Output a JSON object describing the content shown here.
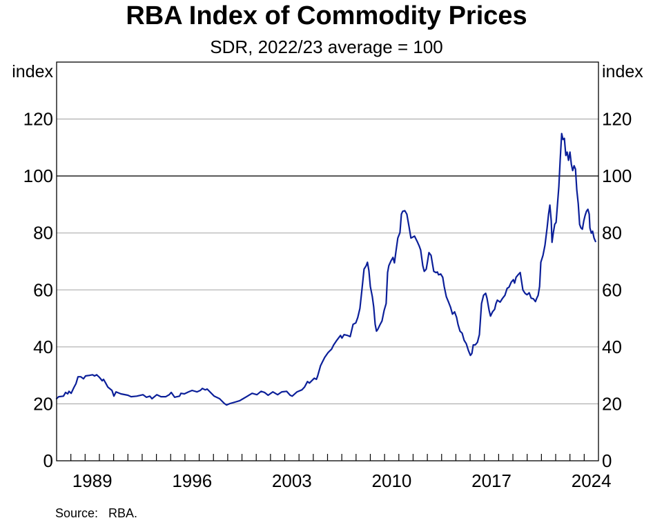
{
  "chart_data": {
    "type": "line",
    "title": "RBA Index of Commodity Prices",
    "subtitle": "SDR, 2022/23 average = 100",
    "ylabel_left": "index",
    "ylabel_right": "index",
    "xlabel": "",
    "xlim": [
      1987,
      2025
    ],
    "ylim": [
      0,
      140
    ],
    "yticks": [
      0,
      20,
      40,
      60,
      80,
      100,
      120
    ],
    "ytick_labels": [
      "0",
      "20",
      "40",
      "60",
      "80",
      "100",
      "120"
    ],
    "xtick_labels": [
      "1989",
      "1996",
      "2003",
      "2010",
      "2017",
      "2024"
    ],
    "xtick_label_years": [
      1989.5,
      1996.5,
      2003.5,
      2010.5,
      2017.5,
      2024.5
    ],
    "reference_line": 100,
    "grid": true,
    "legend": "none",
    "source": "Source:   RBA.",
    "line_color": "#0b1f99",
    "series": [
      {
        "name": "RBA Index of Commodity Prices",
        "x": [
          1987.0,
          1987.15,
          1987.48,
          1987.63,
          1987.78,
          1987.87,
          1988.02,
          1988.21,
          1988.36,
          1988.5,
          1988.7,
          1988.89,
          1989.03,
          1989.33,
          1989.52,
          1989.66,
          1989.81,
          1990.0,
          1990.2,
          1990.29,
          1990.44,
          1990.59,
          1990.88,
          1991.02,
          1991.17,
          1991.51,
          1992.0,
          1992.23,
          1992.62,
          1993.06,
          1993.3,
          1993.54,
          1993.69,
          1994.03,
          1994.32,
          1994.66,
          1994.9,
          1995.04,
          1995.28,
          1995.62,
          1995.72,
          1995.96,
          1996.25,
          1996.5,
          1996.84,
          1997.08,
          1997.22,
          1997.42,
          1997.56,
          1998.05,
          1998.43,
          1998.77,
          1998.92,
          1999.16,
          1999.5,
          1999.84,
          2000.08,
          2000.32,
          2000.71,
          2001.05,
          2001.34,
          2001.58,
          2001.83,
          2002.16,
          2002.5,
          2002.79,
          2003.13,
          2003.38,
          2003.52,
          2003.86,
          2004.2,
          2004.39,
          2004.59,
          2004.73,
          2004.93,
          2005.07,
          2005.22,
          2005.31,
          2005.51,
          2005.65,
          2005.8,
          2006.04,
          2006.28,
          2006.43,
          2006.62,
          2006.77,
          2006.91,
          2007.01,
          2007.16,
          2007.4,
          2007.59,
          2007.79,
          2007.98,
          2008.12,
          2008.27,
          2008.41,
          2008.56,
          2008.71,
          2008.8,
          2008.9,
          2009.0,
          2009.14,
          2009.24,
          2009.34,
          2009.43,
          2009.53,
          2009.67,
          2009.82,
          2009.97,
          2010.11,
          2010.21,
          2010.3,
          2010.45,
          2010.59,
          2010.69,
          2010.79,
          2010.93,
          2011.08,
          2011.18,
          2011.27,
          2011.42,
          2011.56,
          2011.71,
          2011.85,
          2012.0,
          2012.1,
          2012.29,
          2012.44,
          2012.53,
          2012.68,
          2012.78,
          2012.92,
          2013.02,
          2013.11,
          2013.26,
          2013.36,
          2013.45,
          2013.6,
          2013.7,
          2013.79,
          2013.94,
          2014.08,
          2014.18,
          2014.33,
          2014.47,
          2014.62,
          2014.76,
          2014.91,
          2015.05,
          2015.15,
          2015.29,
          2015.44,
          2015.58,
          2015.73,
          2015.88,
          2016.02,
          2016.12,
          2016.22,
          2016.36,
          2016.51,
          2016.65,
          2016.8,
          2016.94,
          2017.09,
          2017.18,
          2017.33,
          2017.43,
          2017.57,
          2017.72,
          2017.81,
          2017.91,
          2018.1,
          2018.25,
          2018.44,
          2018.59,
          2018.73,
          2018.88,
          2019.03,
          2019.12,
          2019.22,
          2019.36,
          2019.51,
          2019.7,
          2019.85,
          2019.99,
          2020.14,
          2020.28,
          2020.43,
          2020.58,
          2020.67,
          2020.77,
          2020.87,
          2020.96,
          2021.11,
          2021.25,
          2021.4,
          2021.5,
          2021.59,
          2021.69,
          2021.74,
          2021.83,
          2021.93,
          2022.03,
          2022.13,
          2022.22,
          2022.32,
          2022.42,
          2022.51,
          2022.61,
          2022.71,
          2022.8,
          2022.9,
          2023.0,
          2023.1,
          2023.19,
          2023.29,
          2023.39,
          2023.48,
          2023.58,
          2023.68,
          2023.77,
          2023.87,
          2023.97,
          2024.06,
          2024.16,
          2024.26,
          2024.35,
          2024.4,
          2024.5,
          2024.59,
          2024.69,
          2024.79
        ],
        "values": [
          21.8,
          22.5,
          22.7,
          24.0,
          23.5,
          24.4,
          23.7,
          25.7,
          27.1,
          29.5,
          29.5,
          28.8,
          29.8,
          30.0,
          30.2,
          29.8,
          30.2,
          29.3,
          28.1,
          28.6,
          27.3,
          25.9,
          24.7,
          22.7,
          24.2,
          23.5,
          23.0,
          22.5,
          22.7,
          23.2,
          22.3,
          22.7,
          21.8,
          23.2,
          22.5,
          22.5,
          23.2,
          24.0,
          22.3,
          22.7,
          23.7,
          23.5,
          24.2,
          24.7,
          24.2,
          24.7,
          25.4,
          24.9,
          25.2,
          22.7,
          21.8,
          20.1,
          19.6,
          20.1,
          20.6,
          21.1,
          21.8,
          22.5,
          23.7,
          23.2,
          24.4,
          24.0,
          23.0,
          24.2,
          23.2,
          24.2,
          24.4,
          23.0,
          22.7,
          24.2,
          24.9,
          25.9,
          27.8,
          27.3,
          28.3,
          29.0,
          28.6,
          29.8,
          33.4,
          34.8,
          36.3,
          38.0,
          39.2,
          40.7,
          42.1,
          43.1,
          44.0,
          43.1,
          44.3,
          44.0,
          43.6,
          47.9,
          48.4,
          50.3,
          53.5,
          60.0,
          67.3,
          68.5,
          69.7,
          66.8,
          61.2,
          57.6,
          54.0,
          47.9,
          45.5,
          46.2,
          47.7,
          49.1,
          52.8,
          55.2,
          66.1,
          68.5,
          70.2,
          71.4,
          69.5,
          73.3,
          78.2,
          80.1,
          86.6,
          87.6,
          87.8,
          86.6,
          82.3,
          78.2,
          78.6,
          78.9,
          77.0,
          75.3,
          74.0,
          68.5,
          66.5,
          67.3,
          70.2,
          73.1,
          72.1,
          69.2,
          66.5,
          66.1,
          66.3,
          65.3,
          65.6,
          64.4,
          61.2,
          57.6,
          55.9,
          54.0,
          51.5,
          52.3,
          50.3,
          47.9,
          45.5,
          44.8,
          42.3,
          41.1,
          38.7,
          37.0,
          37.7,
          40.7,
          40.7,
          41.6,
          44.3,
          55.2,
          58.1,
          58.8,
          57.1,
          52.8,
          50.8,
          52.3,
          53.2,
          55.2,
          56.4,
          55.7,
          56.9,
          58.1,
          60.5,
          61.0,
          62.7,
          63.6,
          62.4,
          64.4,
          65.3,
          66.1,
          60.0,
          58.8,
          58.3,
          59.0,
          57.1,
          56.9,
          55.9,
          57.1,
          58.1,
          61.2,
          69.7,
          72.1,
          75.7,
          81.8,
          86.6,
          89.8,
          84.2,
          76.7,
          79.9,
          83.0,
          83.7,
          90.3,
          96.3,
          106.0,
          114.9,
          112.8,
          113.2,
          107.2,
          108.4,
          105.5,
          108.4,
          104.1,
          101.9,
          103.6,
          102.4,
          95.1,
          90.3,
          83.0,
          81.8,
          81.3,
          84.2,
          86.1,
          87.6,
          88.3,
          86.6,
          81.8,
          79.9,
          80.6,
          78.2,
          77.0
        ]
      }
    ]
  }
}
